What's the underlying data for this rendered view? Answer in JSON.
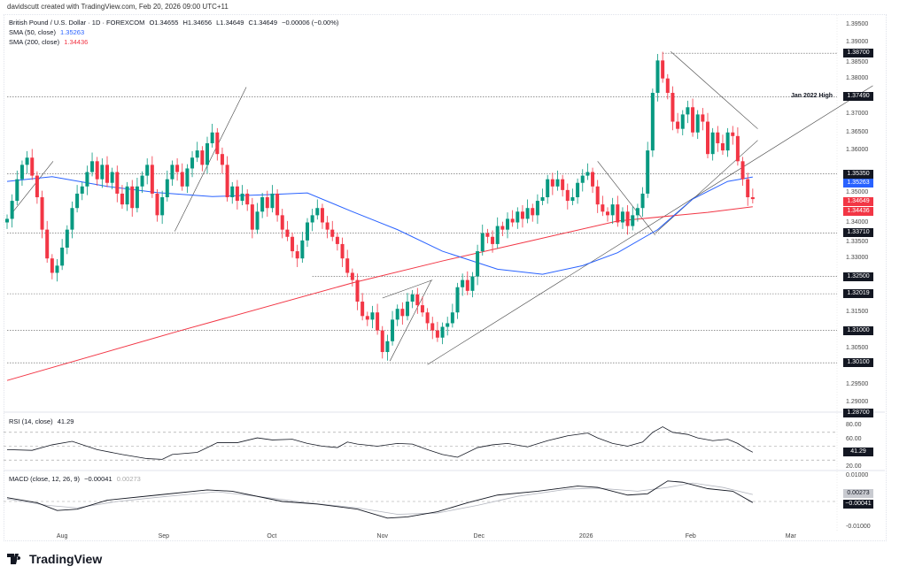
{
  "credit": "davidscutt created with TradingView.com, Feb 20, 2026 09:00 UTC+11",
  "legend": {
    "symbol": "British Pound / U.S. Dollar · 1D · FOREXCOM",
    "open": "O1.34655",
    "high": "H1.34656",
    "low": "L1.34649",
    "close": "C1.34649",
    "change": "−0.00006 (−0.00%)",
    "sma50_label": "SMA (50, close)",
    "sma50_value": "1.35263",
    "sma200_label": "SMA (200, close)",
    "sma200_value": "1.34436",
    "rsi_label": "RSI (14, close)",
    "rsi_value": "41.29",
    "macd_label": "MACD (close, 12, 26, 9)",
    "macd_value": "−0.00041",
    "signal_value": "0.00273"
  },
  "colors": {
    "up": "#089981",
    "down": "#f23645",
    "sma50": "#2962ff",
    "sma200": "#f23645",
    "label_bg": "#131722"
  },
  "chart_data": {
    "type": "candlestick",
    "price_ticks": [
      "1.39500",
      "1.39000",
      "1.38500",
      "1.38000",
      "1.37000",
      "1.36500",
      "1.36000",
      "1.35000",
      "1.34000",
      "1.33500",
      "1.33000",
      "1.31500",
      "1.30500",
      "1.29500",
      "1.29000"
    ],
    "price_range": [
      1.287,
      1.3955
    ],
    "months": [
      {
        "label": "Aug",
        "i": 11
      },
      {
        "label": "Sep",
        "i": 31.3
      },
      {
        "label": "Oct",
        "i": 52.9
      },
      {
        "label": "Nov",
        "i": 75
      },
      {
        "label": "Dec",
        "i": 94.3
      },
      {
        "label": "2026",
        "i": 115.7
      },
      {
        "label": "Feb",
        "i": 136.6
      },
      {
        "label": "Mar",
        "i": 156.6
      }
    ],
    "closes": [
      1.341,
      1.346,
      1.352,
      1.356,
      1.358,
      1.353,
      1.347,
      1.338,
      1.33,
      1.326,
      1.328,
      1.333,
      1.338,
      1.344,
      1.348,
      1.35,
      1.354,
      1.357,
      1.352,
      1.356,
      1.351,
      1.354,
      1.348,
      1.345,
      1.35,
      1.344,
      1.35,
      1.353,
      1.356,
      1.348,
      1.342,
      1.347,
      1.352,
      1.356,
      1.354,
      1.35,
      1.355,
      1.358,
      1.36,
      1.356,
      1.362,
      1.365,
      1.359,
      1.356,
      1.347,
      1.35,
      1.346,
      1.348,
      1.345,
      1.338,
      1.343,
      1.347,
      1.344,
      1.348,
      1.342,
      1.338,
      1.336,
      1.332,
      1.33,
      1.335,
      1.34,
      1.342,
      1.344,
      1.34,
      1.338,
      1.336,
      1.334,
      1.33,
      1.326,
      1.324,
      1.318,
      1.314,
      1.313,
      1.315,
      1.31,
      1.304,
      1.307,
      1.313,
      1.316,
      1.314,
      1.318,
      1.32,
      1.317,
      1.315,
      1.312,
      1.31,
      1.308,
      1.311,
      1.312,
      1.315,
      1.322,
      1.324,
      1.321,
      1.325,
      1.332,
      1.337,
      1.336,
      1.334,
      1.339,
      1.338,
      1.341,
      1.34,
      1.343,
      1.341,
      1.344,
      1.342,
      1.346,
      1.347,
      1.352,
      1.35,
      1.352,
      1.349,
      1.346,
      1.347,
      1.351,
      1.353,
      1.354,
      1.35,
      1.345,
      1.343,
      1.342,
      1.345,
      1.34,
      1.343,
      1.339,
      1.342,
      1.344,
      1.348,
      1.36,
      1.376,
      1.385,
      1.38,
      1.376,
      1.368,
      1.366,
      1.37,
      1.372,
      1.365,
      1.37,
      1.368,
      1.359,
      1.365,
      1.362,
      1.36,
      1.365,
      1.364,
      1.357,
      1.352,
      1.347,
      1.34649
    ],
    "first_open": 1.34,
    "sma50": [
      [
        0,
        1.3514
      ],
      [
        9,
        1.3527
      ],
      [
        20,
        1.35
      ],
      [
        30,
        1.3483
      ],
      [
        41,
        1.3472
      ],
      [
        52,
        1.3477
      ],
      [
        60,
        1.3482
      ],
      [
        69,
        1.343
      ],
      [
        78,
        1.338
      ],
      [
        87,
        1.332
      ],
      [
        98,
        1.327
      ],
      [
        107,
        1.3256
      ],
      [
        115,
        1.328
      ],
      [
        122,
        1.3316
      ],
      [
        130,
        1.338
      ],
      [
        137,
        1.3465
      ],
      [
        144,
        1.3514
      ],
      [
        149,
        1.35263
      ]
    ],
    "sma200": [
      [
        0,
        1.2961
      ],
      [
        34,
        1.3097
      ],
      [
        69,
        1.3232
      ],
      [
        87,
        1.3293
      ],
      [
        105,
        1.335
      ],
      [
        122,
        1.3404
      ],
      [
        140,
        1.3428
      ],
      [
        149,
        1.34436
      ]
    ],
    "levels": [
      {
        "price": 1.387,
        "label": "1.38700",
        "from": 131
      },
      {
        "price": 1.3749,
        "label": "1.37490",
        "from": 0,
        "note": "Jan 2022 High"
      },
      {
        "price": 1.3535,
        "label": "1.35350",
        "from": 0
      },
      {
        "price": 1.3371,
        "label": "1.33710",
        "from": 0
      },
      {
        "price": 1.325,
        "label": "1.32500",
        "from": 61
      },
      {
        "price": 1.32019,
        "label": "1.32019",
        "from": 0
      },
      {
        "price": 1.31,
        "label": "1.31000",
        "from": 0
      },
      {
        "price": 1.301,
        "label": "1.30100",
        "from": 0
      },
      {
        "price": 1.287,
        "label": "1.28700",
        "from": 160
      }
    ],
    "trendlines": [
      [
        [
          33.5,
          1.3375
        ],
        [
          47.8,
          1.3776
        ]
      ],
      [
        [
          1.2,
          1.343
        ],
        [
          9.2,
          1.357
        ]
      ],
      [
        [
          76.5,
          1.3015
        ],
        [
          84.8,
          1.324
        ]
      ],
      [
        [
          75,
          1.319
        ],
        [
          85,
          1.324
        ]
      ],
      [
        [
          84,
          1.3005
        ],
        [
          173,
          1.378
        ]
      ],
      [
        [
          132.6,
          1.3875
        ],
        [
          150,
          1.366
        ]
      ],
      [
        [
          118,
          1.357
        ],
        [
          129.5,
          1.3365
        ]
      ],
      [
        [
          129.5,
          1.337
        ],
        [
          150,
          1.3628
        ]
      ]
    ],
    "rsi": {
      "ticks": [
        "80.00",
        "60.00",
        "20.00"
      ],
      "levels": [
        70,
        50,
        30
      ],
      "values": [
        [
          0,
          45
        ],
        [
          5,
          44
        ],
        [
          9,
          52
        ],
        [
          13,
          57
        ],
        [
          18,
          45
        ],
        [
          23,
          38
        ],
        [
          28,
          32
        ],
        [
          31,
          31
        ],
        [
          33,
          38
        ],
        [
          38,
          41
        ],
        [
          42,
          55
        ],
        [
          46,
          55
        ],
        [
          50,
          62
        ],
        [
          53,
          59
        ],
        [
          57,
          60
        ],
        [
          60,
          54
        ],
        [
          63,
          50
        ],
        [
          66,
          48
        ],
        [
          68,
          56
        ],
        [
          70,
          53
        ],
        [
          74,
          50
        ],
        [
          78,
          54
        ],
        [
          81,
          53
        ],
        [
          84,
          45
        ],
        [
          87,
          38
        ],
        [
          90,
          34
        ],
        [
          94,
          48
        ],
        [
          97,
          52
        ],
        [
          100,
          54
        ],
        [
          104,
          49
        ],
        [
          108,
          58
        ],
        [
          112,
          65
        ],
        [
          116,
          69
        ],
        [
          118,
          62
        ],
        [
          121,
          54
        ],
        [
          124,
          50
        ],
        [
          127,
          56
        ],
        [
          129,
          70
        ],
        [
          131,
          78
        ],
        [
          133,
          70
        ],
        [
          136,
          67
        ],
        [
          138,
          62
        ],
        [
          141,
          58
        ],
        [
          144,
          60
        ],
        [
          146,
          54
        ],
        [
          148,
          45
        ],
        [
          149,
          41.29
        ]
      ]
    },
    "macd": {
      "ticks": [
        "0.01000",
        "-0.01000"
      ],
      "macd": [
        [
          0,
          0.0015
        ],
        [
          6,
          -0.0005
        ],
        [
          10,
          -0.0035
        ],
        [
          14,
          -0.003
        ],
        [
          20,
          0.0005
        ],
        [
          30,
          0.0025
        ],
        [
          40,
          0.0045
        ],
        [
          45,
          0.004
        ],
        [
          55,
          0.0
        ],
        [
          62,
          -0.001
        ],
        [
          70,
          -0.003
        ],
        [
          76,
          -0.0065
        ],
        [
          80,
          -0.006
        ],
        [
          86,
          -0.004
        ],
        [
          92,
          -0.0005
        ],
        [
          98,
          0.0025
        ],
        [
          106,
          0.004
        ],
        [
          114,
          0.006
        ],
        [
          118,
          0.0055
        ],
        [
          124,
          0.0025
        ],
        [
          128,
          0.003
        ],
        [
          132,
          0.008
        ],
        [
          135,
          0.0075
        ],
        [
          140,
          0.005
        ],
        [
          145,
          0.004
        ],
        [
          149,
          -0.00041
        ]
      ],
      "signal": [
        [
          0,
          0.001
        ],
        [
          8,
          -0.0015
        ],
        [
          14,
          -0.0025
        ],
        [
          22,
          0.0
        ],
        [
          32,
          0.002
        ],
        [
          42,
          0.0038
        ],
        [
          50,
          0.002
        ],
        [
          60,
          -0.0005
        ],
        [
          70,
          -0.0025
        ],
        [
          78,
          -0.005
        ],
        [
          86,
          -0.0045
        ],
        [
          94,
          -0.0015
        ],
        [
          102,
          0.002
        ],
        [
          112,
          0.0048
        ],
        [
          118,
          0.0052
        ],
        [
          126,
          0.004
        ],
        [
          132,
          0.0055
        ],
        [
          137,
          0.0072
        ],
        [
          143,
          0.0055
        ],
        [
          149,
          0.00273
        ]
      ]
    }
  },
  "brand": "TradingView"
}
